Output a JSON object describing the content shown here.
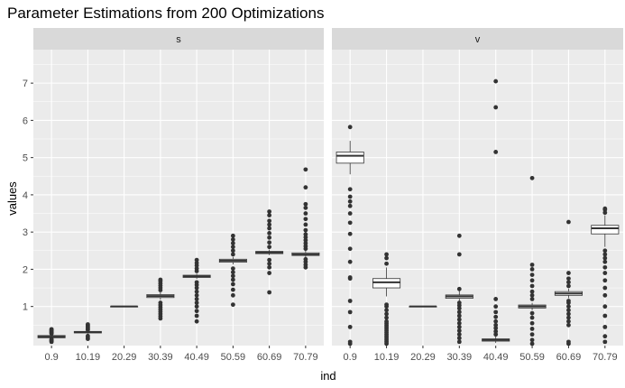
{
  "chart_data": {
    "type": "boxplot",
    "title": "Parameter Estimations from 200 Optimizations",
    "xlabel": "ind",
    "ylabel": "values",
    "ylim": [
      -0.05,
      7.9
    ],
    "yticks": [
      1,
      2,
      3,
      4,
      5,
      6,
      7
    ],
    "categories": [
      "0.9",
      "10.19",
      "20.29",
      "30.39",
      "40.49",
      "50.59",
      "60.69",
      "70.79"
    ],
    "panels": [
      {
        "name": "s",
        "boxes": [
          {
            "q1": 0.16,
            "median": 0.19,
            "q3": 0.22,
            "lower": 0.12,
            "upper": 0.25,
            "outliers": [
              0.05,
              0.07,
              0.09,
              0.1,
              0.12,
              0.27,
              0.29,
              0.31,
              0.33,
              0.35,
              0.37,
              0.39
            ]
          },
          {
            "q1": 0.29,
            "median": 0.31,
            "q3": 0.33,
            "lower": 0.27,
            "upper": 0.35,
            "outliers": [
              0.13,
              0.17,
              0.21,
              0.37,
              0.4,
              0.43,
              0.46,
              0.49,
              0.52
            ]
          },
          {
            "q1": 1.0,
            "median": 1.0,
            "q3": 1.0,
            "lower": 1.0,
            "upper": 1.0,
            "outliers": []
          },
          {
            "q1": 1.24,
            "median": 1.28,
            "q3": 1.32,
            "lower": 1.18,
            "upper": 1.38,
            "outliers": [
              0.68,
              0.74,
              0.8,
              0.86,
              0.92,
              0.98,
              1.04,
              1.1,
              1.44,
              1.5,
              1.56,
              1.62,
              1.68,
              1.72
            ]
          },
          {
            "q1": 1.78,
            "median": 1.81,
            "q3": 1.84,
            "lower": 1.74,
            "upper": 1.88,
            "outliers": [
              0.6,
              0.75,
              0.88,
              1.0,
              1.1,
              1.2,
              1.3,
              1.4,
              1.5,
              1.58,
              1.65,
              1.95,
              2.02,
              2.1,
              2.17,
              2.25
            ]
          },
          {
            "q1": 2.19,
            "median": 2.23,
            "q3": 2.27,
            "lower": 2.13,
            "upper": 2.33,
            "outliers": [
              1.05,
              1.3,
              1.45,
              1.6,
              1.72,
              1.82,
              1.92,
              2.02,
              2.4,
              2.5,
              2.6,
              2.7,
              2.8,
              2.9
            ]
          },
          {
            "q1": 2.42,
            "median": 2.45,
            "q3": 2.48,
            "lower": 2.38,
            "upper": 2.53,
            "outliers": [
              1.38,
              1.9,
              2.05,
              2.15,
              2.25,
              2.6,
              2.72,
              2.85,
              2.97,
              3.1,
              3.2,
              3.3,
              3.45,
              3.55
            ]
          },
          {
            "q1": 2.37,
            "median": 2.4,
            "q3": 2.44,
            "lower": 2.32,
            "upper": 2.5,
            "outliers": [
              2.05,
              2.12,
              2.2,
              2.27,
              2.55,
              2.62,
              2.7,
              2.78,
              2.86,
              2.94,
              3.05,
              3.2,
              3.35,
              3.5,
              3.65,
              3.75,
              4.2,
              4.68
            ]
          }
        ]
      },
      {
        "name": "v",
        "boxes": [
          {
            "q1": 4.85,
            "median": 5.05,
            "q3": 5.15,
            "lower": 4.55,
            "upper": 5.45,
            "outliers": [
              0.0,
              0.05,
              0.45,
              0.85,
              1.15,
              1.75,
              1.78,
              2.2,
              2.55,
              2.95,
              3.25,
              3.5,
              3.7,
              3.82,
              3.95,
              4.15,
              5.82
            ]
          },
          {
            "q1": 1.5,
            "median": 1.65,
            "q3": 1.75,
            "lower": 1.27,
            "upper": 2.05,
            "outliers": [
              0.0,
              0.05,
              0.1,
              0.15,
              0.2,
              0.25,
              0.3,
              0.35,
              0.4,
              0.45,
              0.5,
              0.55,
              0.6,
              0.7,
              0.8,
              0.9,
              1.0,
              1.05,
              2.15,
              2.3,
              2.4
            ]
          },
          {
            "q1": 1.0,
            "median": 1.0,
            "q3": 1.0,
            "lower": 1.0,
            "upper": 1.0,
            "outliers": []
          },
          {
            "q1": 1.22,
            "median": 1.27,
            "q3": 1.31,
            "lower": 1.14,
            "upper": 1.43,
            "outliers": [
              0.05,
              0.15,
              0.25,
              0.35,
              0.45,
              0.55,
              0.65,
              0.75,
              0.85,
              0.95,
              1.03,
              1.1,
              1.47,
              2.4,
              2.9
            ]
          },
          {
            "q1": 0.07,
            "median": 0.1,
            "q3": 0.13,
            "lower": 0.02,
            "upper": 0.2,
            "outliers": [
              0.25,
              0.33,
              0.42,
              0.5,
              0.6,
              0.72,
              0.85,
              1.0,
              1.2,
              5.15,
              6.35,
              7.05
            ]
          },
          {
            "q1": 0.96,
            "median": 1.0,
            "q3": 1.04,
            "lower": 0.9,
            "upper": 1.1,
            "outliers": [
              0.0,
              0.1,
              0.25,
              0.4,
              0.55,
              0.7,
              0.82,
              1.2,
              1.3,
              1.4,
              1.55,
              1.7,
              1.85,
              2.0,
              2.12,
              4.45
            ]
          },
          {
            "q1": 1.3,
            "median": 1.35,
            "q3": 1.4,
            "lower": 1.22,
            "upper": 1.48,
            "outliers": [
              0.0,
              0.05,
              0.5,
              0.6,
              0.7,
              0.8,
              0.9,
              1.0,
              1.1,
              1.15,
              1.55,
              1.65,
              1.75,
              1.9,
              3.27
            ]
          },
          {
            "q1": 2.95,
            "median": 3.1,
            "q3": 3.18,
            "lower": 2.6,
            "upper": 3.45,
            "outliers": [
              0.05,
              0.2,
              0.45,
              0.75,
              1.0,
              1.3,
              1.5,
              1.7,
              1.9,
              2.05,
              2.2,
              2.3,
              2.4,
              2.5,
              3.52,
              3.6,
              3.63
            ]
          }
        ]
      }
    ],
    "colors": {
      "panel_bg": "#ebebeb",
      "grid": "#ffffff",
      "strip_bg": "#d9d9d9",
      "box_fill": "#ffffff",
      "box_line": "#333333",
      "outlier": "#333333"
    }
  }
}
